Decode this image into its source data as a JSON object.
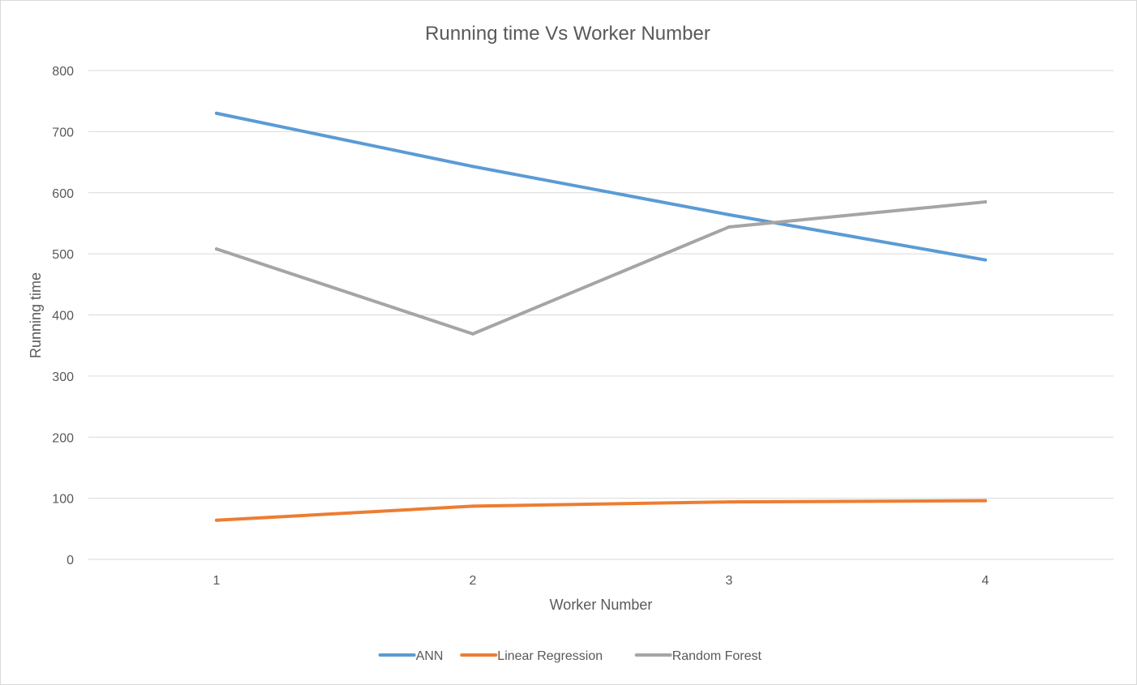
{
  "chart_data": {
    "type": "line",
    "title": "Running time Vs Worker Number",
    "xlabel": "Worker Number",
    "ylabel": "Running time",
    "categories": [
      "1",
      "2",
      "3",
      "4"
    ],
    "ylim": [
      0,
      800
    ],
    "yticks": [
      0,
      100,
      200,
      300,
      400,
      500,
      600,
      700,
      800
    ],
    "grid": true,
    "legend_position": "bottom",
    "series": [
      {
        "name": "ANN",
        "color": "#5b9bd5",
        "values": [
          730,
          643,
          564,
          490
        ]
      },
      {
        "name": "Linear Regression",
        "color": "#ed7d31",
        "values": [
          64,
          87,
          94,
          96
        ]
      },
      {
        "name": "Random Forest",
        "color": "#a5a5a5",
        "values": [
          508,
          369,
          544,
          585
        ]
      }
    ]
  }
}
